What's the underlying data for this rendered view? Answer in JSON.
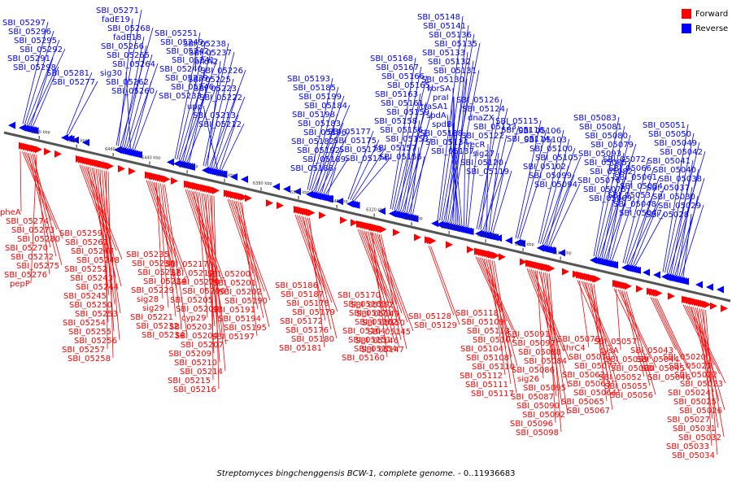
{
  "legend": {
    "forward_label": "Forward",
    "reverse_label": "Reverse",
    "forward_color": "#ff0000",
    "reverse_color": "#0000ff"
  },
  "caption": {
    "organism": "Streptomyces bingchenggensis BCW-1, complete genome.",
    "range": " - 0..11936683"
  },
  "ticks": [
    "6500 kbp",
    "6480 kbp",
    "6460 kbp",
    "6440 kbp",
    "6420 kbp",
    "6400 kbp",
    "6380 kbp",
    "6360 kbp",
    "6340 kbp",
    "6320 kbp",
    "6300 kbp",
    "6280 kbp",
    "6260 kbp",
    "6240 kbp",
    "6220 kbp"
  ],
  "reverse_labels": [
    [
      "SBI_05297",
      "SBI_05296",
      "SBI_05295",
      "SBI_05292",
      "SBI_05291",
      "SBI_05298"
    ],
    [
      "SBI_05281",
      "SBI_05277"
    ],
    [
      "SBI_05271",
      "fadE19",
      "SBI_05268",
      "fadE18",
      "SBI_05266",
      "SBI_05265",
      "SBI_05264",
      "sig30",
      "SBI_05262",
      "SBI_05260"
    ],
    [
      "SBI_05251",
      "SBI_05249",
      "SBI_05242",
      "SBI_05241",
      "SBI_05240",
      "SBI_05239",
      "SBI_05246",
      "SBI_05233"
    ],
    [
      "SBI_05238",
      "SBI_05237",
      "pfkA2",
      "SBI_05226",
      "SBI_05225",
      "SBI_05223",
      "SBI_05222",
      "upp",
      "SBI_05213",
      "SBI_05212"
    ],
    [
      "SBI_05193",
      "SBI_05185",
      "SBI_05199",
      "SBI_05184",
      "SBI_05198",
      "SBI_05183",
      "SBI_05196",
      "SBI_05182",
      "SBI_05192",
      "SBI_05189",
      "SBI_05188"
    ],
    [
      "SBI_05177",
      "SBI_05175",
      "SBI_05173",
      "SBI_05174"
    ],
    [
      "SBI_05168",
      "SBI_05167",
      "SBI_05166",
      "SBI_05165",
      "SBI_05163",
      "SBI_05161",
      "SBI_05159",
      "SBI_05158",
      "SBI_05156",
      "SBI_05153",
      "SBI_05157",
      "SBI_05155"
    ],
    [
      "SBI_05148",
      "SBI_05141",
      "SBI_05136",
      "SBI_05135",
      "SBI_05133",
      "SBI_05132",
      "SBI_05131",
      "SBI_05130",
      "korSA",
      "praI",
      "traSA1",
      "spdA",
      "spdB",
      "SBI_05138",
      "SBI_05134",
      "SBI_05137"
    ],
    [
      "SBI_05126",
      "SBI_05124",
      "dnaZX",
      "SBI_05123",
      "SBI_05122",
      "recR",
      "sig27",
      "SBI_05120",
      "SBI_05119"
    ],
    [
      "SBI_05115",
      "SBI_05116",
      "SBI_05114"
    ],
    [
      "SBI_05106",
      "SBI_05103",
      "SBI_05100",
      "SBI_05105",
      "SBI_05102",
      "SBI_05099",
      "SBI_05094"
    ],
    [
      "SBI_05083",
      "SBI_05081",
      "SBI_05080",
      "SBI_05079",
      "SBI_05093",
      "SBI_05085",
      "SBI_05082",
      "SBI_05076",
      "SBI_05075",
      "SBI_05069"
    ],
    [
      "SBI_05072",
      "SBI_05066",
      "SBI_05061",
      "SBI_05054",
      "SBI_05053",
      "SBI_05048",
      "SBI_05047"
    ],
    [
      "SBI_05051",
      "SBI_05050",
      "SBI_05049",
      "SBI_05042",
      "SBI_05041",
      "SBI_05040",
      "SBI_05038",
      "SBI_05037",
      "SBI_05030",
      "SBI_05029",
      "SBI_05028"
    ]
  ],
  "forward_labels": [
    [
      "pheA",
      "SBI_05274",
      "SBI_05273",
      "SBI_05280",
      "SBI_05270",
      "SBI_05272",
      "SBI_05275",
      "SBI_05276",
      "pepP"
    ],
    [
      "SBI_05259",
      "SBI_05261",
      "SBI_05247",
      "SBI_05248",
      "SBI_05252",
      "SBI_05243",
      "SBI_05244",
      "SBI_05245",
      "SBI_05250",
      "SBI_05253",
      "SBI_05254",
      "SBI_05255",
      "SBI_05256",
      "SBI_05257",
      "SBI_05258"
    ],
    [
      "SBI_05235",
      "SBI_05236",
      "SBI_05227",
      "SBI_05224",
      "SBI_05229",
      "sig28",
      "sig29",
      "SBI_05221",
      "SBI_05232",
      "SBI_05234"
    ],
    [
      "SBI_05217",
      "SBI_05219",
      "SBI_05220",
      "SBI_05206",
      "SBI_05205",
      "SBI_05208",
      "cyp29",
      "SBI_05203",
      "SBI_05204",
      "SBI_05207",
      "SBI_05209",
      "SBI_05210",
      "SBI_05214",
      "SBI_05215",
      "SBI_05216"
    ],
    [
      "SBI_05200",
      "SBI_05201",
      "SBI_05202",
      "SBI_05190",
      "SBI_05191",
      "SBI_05194",
      "SBI_05195",
      "SBI_05197"
    ],
    [
      "SBI_05186",
      "SBI_05187",
      "SBI_05178",
      "SBI_05179",
      "SBI_05172",
      "SBI_05176",
      "SBI_05180",
      "SBI_05181"
    ],
    [
      "SBI_05170",
      "SBI_05169",
      "SBI_05171",
      "SBI_05162",
      "SBI_05164",
      "SBI_05151",
      "SBI_05154",
      "SBI_05160"
    ],
    [
      "SBI_05152",
      "SBI_05149",
      "SBI_05150",
      "SBI_05145",
      "SBI_05146",
      "SBI_05147"
    ],
    [
      "SBI_05128",
      "SBI_05129"
    ],
    [
      "SBI_05118",
      "SBI_05109",
      "SBI_05113",
      "SBI_05107",
      "SBI_05104",
      "SBI_05108",
      "SBI_05110",
      "SBI_05112",
      "SBI_05111",
      "SBI_05117"
    ],
    [
      "SBI_05091",
      "SBI_05097",
      "SBI_05088",
      "SBI_05084",
      "SBI_05086",
      "sig26",
      "SBI_05095",
      "SBI_05087",
      "SBI_05090",
      "SBI_05092",
      "SBI_05096",
      "SBI_05098"
    ],
    [
      "SBI_05078",
      "thrC4",
      "SBI_05071",
      "SBI_05077",
      "SBI_05062",
      "SBI_05063",
      "SBI_05064",
      "SBI_05065",
      "SBI_05067"
    ],
    [
      "SBI_05057",
      "cysA",
      "SBI_05059",
      "SBI_05060",
      "SBI_05052",
      "SBI_05055",
      "SBI_05056"
    ],
    [
      "SBI_05043",
      "SBI_05044",
      "SBI_05045",
      "SBI_05046"
    ],
    [
      "SBI_05020",
      "SBI_05021",
      "SBI_05022",
      "SBI_05023",
      "SBI_05024",
      "SBI_05025",
      "SBI_05026",
      "SBI_05027",
      "SBI_05031",
      "SBI_05032",
      "SBI_05033",
      "SBI_05034"
    ]
  ]
}
